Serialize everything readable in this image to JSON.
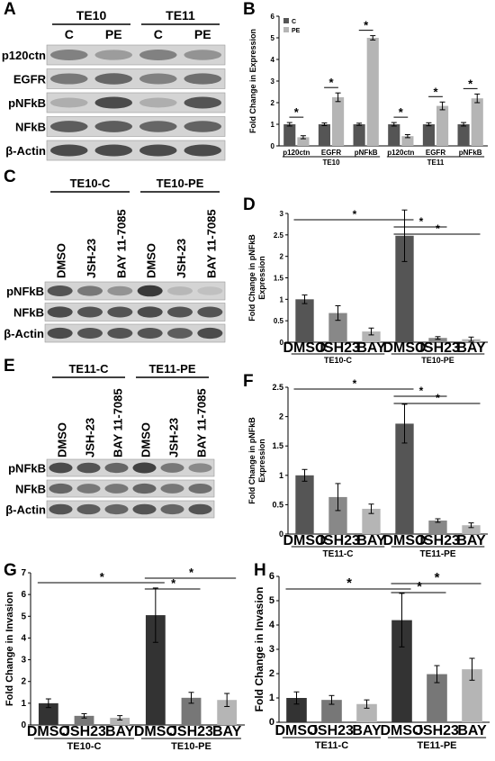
{
  "panel_labels": {
    "A": "A",
    "B": "B",
    "C": "C",
    "D": "D",
    "E": "E",
    "F": "F",
    "G": "G",
    "H": "H"
  },
  "blot_A": {
    "groups": [
      "TE10",
      "TE11"
    ],
    "lanes": [
      "C",
      "PE",
      "C",
      "PE"
    ],
    "rows": [
      "p120ctn",
      "EGFR",
      "pNFkB",
      "NFkB",
      "β-Actin"
    ],
    "intensity": [
      [
        0.55,
        0.4,
        0.55,
        0.45
      ],
      [
        0.6,
        0.7,
        0.55,
        0.65
      ],
      [
        0.3,
        0.85,
        0.3,
        0.8
      ],
      [
        0.75,
        0.75,
        0.7,
        0.72
      ],
      [
        0.85,
        0.85,
        0.85,
        0.85
      ]
    ]
  },
  "blot_C": {
    "groups": [
      "TE10-C",
      "TE10-PE"
    ],
    "lanes": [
      "DMSO",
      "JSH-23",
      "BAY 11-7085",
      "DMSO",
      "JSH-23",
      "BAY 11-7085"
    ],
    "rows": [
      "pNFkB",
      "NFkB",
      "β-Actin"
    ],
    "intensity": [
      [
        0.8,
        0.6,
        0.45,
        0.95,
        0.25,
        0.2
      ],
      [
        0.85,
        0.8,
        0.8,
        0.85,
        0.8,
        0.8
      ],
      [
        0.85,
        0.8,
        0.8,
        0.8,
        0.75,
        0.85
      ]
    ]
  },
  "blot_E": {
    "groups": [
      "TE11-C",
      "TE11-PE"
    ],
    "lanes": [
      "DMSO",
      "JSH-23",
      "BAY 11-7085",
      "DMSO",
      "JSH-23",
      "BAY 11-7085"
    ],
    "rows": [
      "pNFkB",
      "NFkB",
      "β-Actin"
    ],
    "intensity": [
      [
        0.85,
        0.8,
        0.7,
        0.9,
        0.6,
        0.5
      ],
      [
        0.7,
        0.6,
        0.6,
        0.7,
        0.6,
        0.65
      ],
      [
        0.8,
        0.75,
        0.7,
        0.8,
        0.7,
        0.8
      ]
    ]
  },
  "colors": {
    "dark": "#555555",
    "light": "#b5b5b5",
    "blot_bg": "#d4d4d4"
  },
  "chart_data": [
    {
      "id": "B",
      "type": "bar",
      "ylabel": "Fold Change in Expression",
      "ylim": [
        0,
        6
      ],
      "yticks": [
        "0",
        "1",
        "2",
        "3",
        "4",
        "5",
        "6"
      ],
      "categories": [
        "p120ctn",
        "EGFR",
        "pNFkB",
        "p120ctn",
        "EGFR",
        "pNFkB"
      ],
      "groups": [
        "TE10",
        "TE11"
      ],
      "legend": [
        "C",
        "PE"
      ],
      "series": [
        {
          "name": "C",
          "color": "#555555",
          "values": [
            1.0,
            1.0,
            1.0,
            1.0,
            1.0,
            1.0
          ],
          "errors": [
            0.08,
            0.06,
            0.05,
            0.08,
            0.07,
            0.08
          ]
        },
        {
          "name": "PE",
          "color": "#b5b5b5",
          "values": [
            0.4,
            2.25,
            5.0,
            0.45,
            1.85,
            2.2
          ],
          "errors": [
            0.07,
            0.2,
            0.1,
            0.07,
            0.18,
            0.2
          ]
        }
      ],
      "significance": [
        "*",
        "*",
        "*",
        "*",
        "*",
        "*"
      ]
    },
    {
      "id": "D",
      "type": "bar",
      "ylabel": "Fold Change in pNFkB Expression",
      "ylim": [
        0,
        3
      ],
      "yticks": [
        "0",
        "0.5",
        "1",
        "1.5",
        "2",
        "2.5",
        "3"
      ],
      "categories": [
        "DMSO",
        "JSH23",
        "BAY",
        "DMSO",
        "JSH23",
        "BAY"
      ],
      "groups": [
        "TE10-C",
        "TE10-PE"
      ],
      "values": [
        1.0,
        0.68,
        0.25,
        2.48,
        0.1,
        0.07
      ],
      "errors": [
        0.1,
        0.17,
        0.08,
        0.6,
        0.03,
        0.05
      ],
      "colors": [
        "#555555",
        "#888888",
        "#b5b5b5",
        "#555555",
        "#888888",
        "#b5b5b5"
      ],
      "significance": [
        "*",
        "*",
        "*"
      ]
    },
    {
      "id": "F",
      "type": "bar",
      "ylabel": "Fold Change in pNFkB Expression",
      "ylim": [
        0,
        2.5
      ],
      "yticks": [
        "0",
        "0.5",
        "1",
        "1.5",
        "2",
        "2.5"
      ],
      "categories": [
        "DMSO",
        "JSH23",
        "BAY",
        "DMSO",
        "JSH23",
        "BAY"
      ],
      "groups": [
        "TE11-C",
        "TE11-PE"
      ],
      "values": [
        1.0,
        0.63,
        0.43,
        1.88,
        0.23,
        0.15
      ],
      "errors": [
        0.1,
        0.23,
        0.08,
        0.33,
        0.03,
        0.04
      ],
      "colors": [
        "#555555",
        "#888888",
        "#b5b5b5",
        "#555555",
        "#888888",
        "#b5b5b5"
      ],
      "significance": [
        "*",
        "*",
        "*"
      ]
    },
    {
      "id": "G",
      "type": "bar",
      "ylabel": "Fold Change in Invasion",
      "ylim": [
        0,
        7
      ],
      "yticks": [
        "0",
        "1",
        "2",
        "3",
        "4",
        "5",
        "6",
        "7"
      ],
      "categories": [
        "DMSO",
        "JSH23",
        "BAY",
        "DMSO",
        "JSH23",
        "BAY"
      ],
      "groups": [
        "TE10-C",
        "TE10-PE"
      ],
      "values": [
        1.0,
        0.42,
        0.33,
        5.05,
        1.25,
        1.15
      ],
      "errors": [
        0.2,
        0.1,
        0.1,
        1.25,
        0.25,
        0.3
      ],
      "colors": [
        "#333333",
        "#777777",
        "#b5b5b5",
        "#333333",
        "#777777",
        "#b5b5b5"
      ],
      "significance": [
        "*",
        "*",
        "*"
      ]
    },
    {
      "id": "H",
      "type": "bar",
      "ylabel": "Fold Change in Invasion",
      "ylim": [
        0,
        6
      ],
      "yticks": [
        "0",
        "1",
        "2",
        "3",
        "4",
        "5",
        "6"
      ],
      "categories": [
        "DMSO",
        "JSH23",
        "BAY",
        "DMSO",
        "JSH23",
        "BAY"
      ],
      "groups": [
        "TE11-C",
        "TE11-PE"
      ],
      "values": [
        1.0,
        0.92,
        0.75,
        4.2,
        1.98,
        2.18
      ],
      "errors": [
        0.25,
        0.18,
        0.17,
        1.1,
        0.35,
        0.45
      ],
      "colors": [
        "#333333",
        "#777777",
        "#b5b5b5",
        "#333333",
        "#777777",
        "#b5b5b5"
      ],
      "significance": [
        "*",
        "*",
        "*"
      ]
    }
  ]
}
